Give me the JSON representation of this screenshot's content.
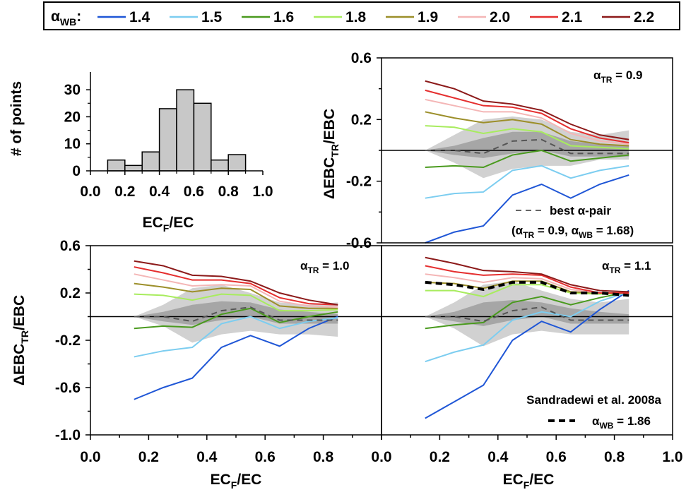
{
  "colors": {
    "1.4": "#1f56d6",
    "1.5": "#7ccdf0",
    "1.6": "#4a9a1e",
    "1.8": "#a8ec5e",
    "1.9": "#9c8f2a",
    "2.0": "#f4b6b6",
    "2.1": "#e52f2f",
    "2.2": "#8c1a1a",
    "band_outer": "#d1d1d1",
    "band_inner": "#a6a6a6",
    "hist_bar": "#c8c8c8"
  },
  "legend": {
    "label": "α",
    "label_sub": "WB",
    "label_suffix": ":",
    "entries": [
      {
        "key": "1.4",
        "text": "1.4"
      },
      {
        "key": "1.5",
        "text": "1.5"
      },
      {
        "key": "1.6",
        "text": "1.6"
      },
      {
        "key": "1.8",
        "text": "1.8"
      },
      {
        "key": "1.9",
        "text": "1.9"
      },
      {
        "key": "2.0",
        "text": "2.0"
      },
      {
        "key": "2.1",
        "text": "2.1"
      },
      {
        "key": "2.2",
        "text": "2.2"
      }
    ]
  },
  "chart_data": [
    {
      "type": "bar",
      "panel": "histogram",
      "ylabel": "# of points",
      "xlabel_main": "EC",
      "xlabel_sub": "F",
      "xlabel_tail": "/EC",
      "xlim": [
        0,
        1
      ],
      "ylim": [
        0,
        35
      ],
      "x_ticks": [
        "0.0",
        "0.2",
        "0.4",
        "0.6",
        "0.8",
        "1.0"
      ],
      "y_ticks": [
        "0",
        "10",
        "20",
        "30"
      ],
      "bin_centers": [
        0.15,
        0.25,
        0.35,
        0.45,
        0.55,
        0.65,
        0.75,
        0.85
      ],
      "values": [
        4,
        2,
        7,
        23,
        30,
        25,
        4,
        6
      ]
    },
    {
      "type": "line",
      "panel": "alpha_tr_0.9",
      "annotation": {
        "main": "α",
        "sub": "TR",
        "tail": " = 0.9"
      },
      "ylabel": {
        "main": "ΔEBC",
        "sub": "TR",
        "tail": "/EBC"
      },
      "xlim": [
        0,
        1
      ],
      "ylim": [
        -0.6,
        0.6
      ],
      "y_ticks": [
        "0.6",
        "0.2",
        "-0.2",
        "-0.6"
      ],
      "x": [
        0.15,
        0.25,
        0.35,
        0.45,
        0.55,
        0.65,
        0.75,
        0.85
      ],
      "band_outer_upper": [
        0.0,
        0.1,
        0.2,
        0.22,
        0.2,
        0.12,
        0.1,
        0.13
      ],
      "band_outer_lower": [
        0.0,
        -0.08,
        -0.18,
        -0.12,
        -0.1,
        -0.1,
        -0.06,
        -0.06
      ],
      "band_inner_upper": [
        0.0,
        0.03,
        0.08,
        0.12,
        0.12,
        0.06,
        0.04,
        0.03
      ],
      "band_inner_lower": [
        0.0,
        -0.03,
        -0.05,
        -0.02,
        0.0,
        -0.04,
        -0.04,
        -0.04
      ],
      "series": [
        {
          "key": "1.4",
          "values": [
            -0.6,
            -0.53,
            -0.49,
            -0.29,
            -0.22,
            -0.31,
            -0.22,
            -0.16
          ]
        },
        {
          "key": "1.5",
          "values": [
            -0.31,
            -0.28,
            -0.27,
            -0.13,
            -0.1,
            -0.18,
            -0.13,
            -0.1
          ]
        },
        {
          "key": "1.6",
          "values": [
            -0.11,
            -0.1,
            -0.11,
            -0.03,
            0.0,
            -0.07,
            -0.05,
            -0.03
          ]
        },
        {
          "key": "1.8",
          "values": [
            0.16,
            0.15,
            0.11,
            0.14,
            0.12,
            0.03,
            0.02,
            0.01
          ]
        },
        {
          "key": "1.9",
          "values": [
            0.25,
            0.21,
            0.18,
            0.2,
            0.17,
            0.07,
            0.04,
            0.03
          ]
        },
        {
          "key": "2.0",
          "values": [
            0.33,
            0.29,
            0.25,
            0.25,
            0.21,
            0.11,
            0.06,
            0.04
          ]
        },
        {
          "key": "2.1",
          "values": [
            0.39,
            0.34,
            0.29,
            0.28,
            0.24,
            0.14,
            0.08,
            0.05
          ]
        },
        {
          "key": "2.2",
          "values": [
            0.45,
            0.4,
            0.32,
            0.3,
            0.26,
            0.17,
            0.1,
            0.07
          ]
        }
      ],
      "best_pair": [
        0.0,
        0.0,
        -0.02,
        0.06,
        0.07,
        -0.02,
        -0.02,
        -0.02
      ],
      "best_pair_legend": {
        "prefix": "best ",
        "main": "α",
        "tail": "-pair"
      },
      "best_pair_values": {
        "open": "(",
        "a1": "α",
        "a1_sub": "TR",
        "a1_tail": " = 0.9, ",
        "a2": "α",
        "a2_sub": "WB",
        "a2_tail": " = 1.68)"
      }
    },
    {
      "type": "line",
      "panel": "alpha_tr_1.0",
      "annotation": {
        "main": "α",
        "sub": "TR",
        "tail": " = 1.0"
      },
      "ylabel": {
        "main": "ΔEBC",
        "sub": "TR",
        "tail": "/EBC"
      },
      "xlabel": {
        "main": "EC",
        "sub": "F",
        "tail": "/EC"
      },
      "xlim": [
        0,
        1
      ],
      "ylim": [
        -1.0,
        0.6
      ],
      "x_ticks": [
        "0.0",
        "0.2",
        "0.4",
        "0.6",
        "0.8"
      ],
      "y_ticks": [
        "0.6",
        "0.2",
        "-0.2",
        "-0.6",
        "-1.0"
      ],
      "x": [
        0.15,
        0.25,
        0.35,
        0.45,
        0.55,
        0.65,
        0.75,
        0.85
      ],
      "band_outer_upper": [
        0.0,
        0.1,
        0.24,
        0.27,
        0.2,
        0.12,
        0.1,
        0.12
      ],
      "band_outer_lower": [
        0.0,
        -0.08,
        -0.22,
        -0.15,
        -0.12,
        -0.15,
        -0.15,
        -0.17
      ],
      "band_inner_upper": [
        0.0,
        0.04,
        0.1,
        0.13,
        0.12,
        0.06,
        0.04,
        0.02
      ],
      "band_inner_lower": [
        0.0,
        -0.04,
        -0.07,
        -0.03,
        0.0,
        -0.06,
        -0.06,
        -0.06
      ],
      "series": [
        {
          "key": "1.4",
          "values": [
            -0.7,
            -0.6,
            -0.52,
            -0.26,
            -0.16,
            -0.25,
            -0.1,
            0.0
          ]
        },
        {
          "key": "1.5",
          "values": [
            -0.34,
            -0.29,
            -0.26,
            -0.06,
            0.0,
            -0.1,
            -0.04,
            -0.01
          ]
        },
        {
          "key": "1.6",
          "values": [
            -0.1,
            -0.08,
            -0.09,
            0.02,
            0.07,
            -0.05,
            0.0,
            0.04
          ]
        },
        {
          "key": "1.8",
          "values": [
            0.19,
            0.18,
            0.14,
            0.19,
            0.18,
            0.05,
            0.05,
            0.06
          ]
        },
        {
          "key": "1.9",
          "values": [
            0.28,
            0.25,
            0.21,
            0.24,
            0.23,
            0.09,
            0.07,
            0.07
          ]
        },
        {
          "key": "2.0",
          "values": [
            0.36,
            0.31,
            0.26,
            0.27,
            0.26,
            0.13,
            0.09,
            0.08
          ]
        },
        {
          "key": "2.1",
          "values": [
            0.42,
            0.37,
            0.31,
            0.31,
            0.28,
            0.16,
            0.11,
            0.1
          ]
        },
        {
          "key": "2.2",
          "values": [
            0.47,
            0.43,
            0.35,
            0.34,
            0.3,
            0.2,
            0.14,
            0.1
          ]
        }
      ],
      "best_pair": [
        0.0,
        0.0,
        -0.04,
        0.05,
        0.08,
        -0.03,
        -0.03,
        -0.03
      ]
    },
    {
      "type": "line",
      "panel": "alpha_tr_1.1",
      "annotation": {
        "main": "α",
        "sub": "TR",
        "tail": " = 1.1"
      },
      "xlabel": {
        "main": "EC",
        "sub": "F",
        "tail": "/EC"
      },
      "xlim": [
        0,
        1
      ],
      "ylim": [
        -1.0,
        0.6
      ],
      "x_ticks": [
        "0.0",
        "0.2",
        "0.4",
        "0.6",
        "0.8",
        "1.0"
      ],
      "x": [
        0.15,
        0.25,
        0.35,
        0.45,
        0.55,
        0.65,
        0.75,
        0.85
      ],
      "band_outer_upper": [
        0.0,
        0.12,
        0.27,
        0.3,
        0.22,
        0.15,
        0.12,
        0.15
      ],
      "band_outer_lower": [
        0.0,
        -0.1,
        -0.25,
        -0.15,
        -0.12,
        -0.15,
        -0.15,
        -0.15
      ],
      "band_inner_upper": [
        0.0,
        0.04,
        0.12,
        0.14,
        0.12,
        0.07,
        0.04,
        0.02
      ],
      "band_inner_lower": [
        0.0,
        -0.04,
        -0.08,
        -0.03,
        0.0,
        -0.06,
        -0.06,
        -0.06
      ],
      "series": [
        {
          "key": "1.4",
          "values": [
            -0.86,
            -0.72,
            -0.58,
            -0.2,
            -0.04,
            -0.13,
            0.06,
            0.22
          ]
        },
        {
          "key": "1.5",
          "values": [
            -0.38,
            -0.3,
            -0.24,
            -0.03,
            0.04,
            0.0,
            0.13,
            0.21
          ]
        },
        {
          "key": "1.6",
          "values": [
            -0.1,
            -0.07,
            -0.05,
            0.12,
            0.17,
            0.1,
            0.16,
            0.21
          ]
        },
        {
          "key": "1.8",
          "values": [
            0.22,
            0.22,
            0.17,
            0.27,
            0.27,
            0.2,
            0.19,
            0.2
          ]
        },
        {
          "key": "1.9",
          "values": [
            0.29,
            0.28,
            0.24,
            0.3,
            0.3,
            0.21,
            0.2,
            0.2
          ]
        },
        {
          "key": "2.0",
          "values": [
            0.36,
            0.33,
            0.29,
            0.33,
            0.32,
            0.23,
            0.2,
            0.2
          ]
        },
        {
          "key": "2.1",
          "values": [
            0.43,
            0.38,
            0.35,
            0.36,
            0.35,
            0.25,
            0.2,
            0.2
          ]
        },
        {
          "key": "2.2",
          "values": [
            0.5,
            0.45,
            0.39,
            0.38,
            0.36,
            0.27,
            0.22,
            0.21
          ]
        }
      ],
      "best_pair": [
        0.0,
        0.0,
        -0.04,
        0.05,
        0.08,
        -0.03,
        -0.03,
        -0.03
      ],
      "sandradewi": [
        0.29,
        0.27,
        0.23,
        0.29,
        0.29,
        0.2,
        0.2,
        0.18
      ],
      "sandradewi_title": "Sandradewi et al. 2008a",
      "sandradewi_legend": {
        "main": "α",
        "sub": "WB",
        "tail": " = 1.86"
      }
    }
  ]
}
